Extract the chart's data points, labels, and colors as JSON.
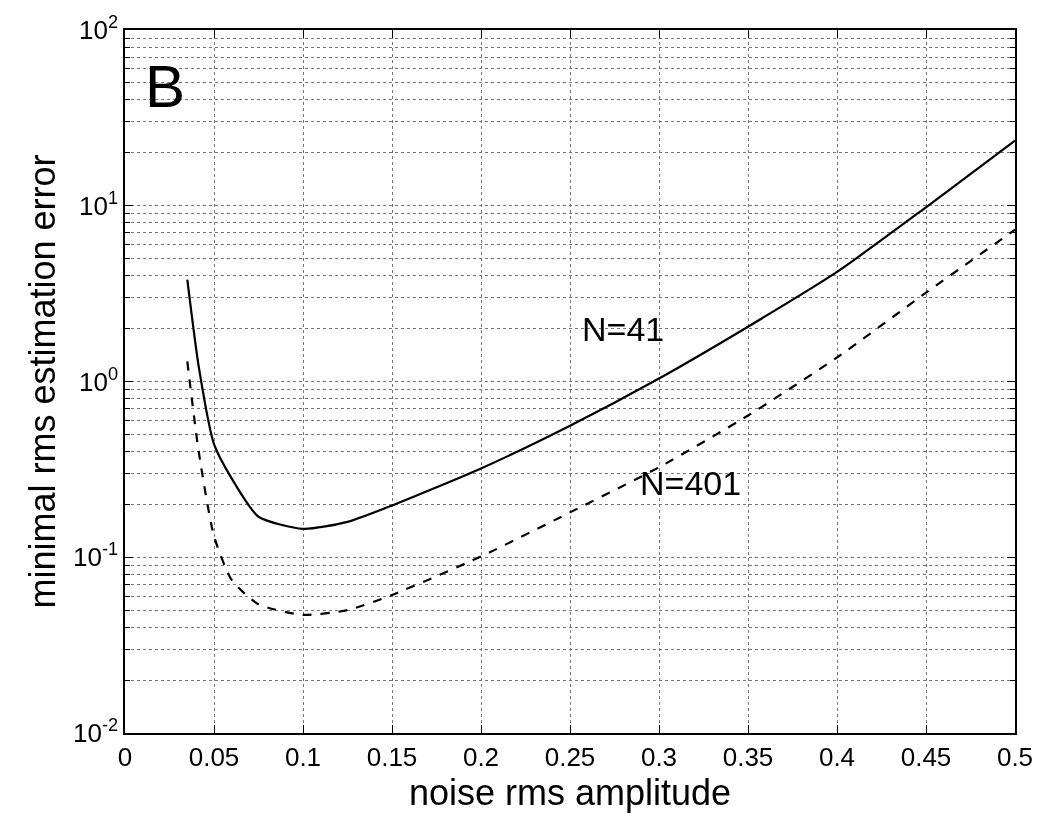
{
  "chart_data": {
    "type": "line",
    "xlabel": "noise rms amplitude",
    "ylabel": "minimal rms estimation error",
    "log": "y",
    "grid": true,
    "xlim": [
      0,
      0.5
    ],
    "xticks": [
      0,
      0.05,
      0.1,
      0.15,
      0.2,
      0.25,
      0.3,
      0.35,
      0.4,
      0.45,
      0.5
    ],
    "ylim": [
      0.01,
      100
    ],
    "yticks": [
      {
        "value": 0.01,
        "label": "10$^{-2}$"
      },
      {
        "value": 0.1,
        "label": "10$^{-1}$"
      },
      {
        "value": 1,
        "label": "10$^{0}$"
      },
      {
        "value": 10,
        "label": "10$^{1}$"
      },
      {
        "value": 100,
        "label": "10$^{2}$"
      }
    ],
    "x": [
      0.035,
      0.0414,
      0.05,
      0.06,
      0.075,
      0.1,
      0.125,
      0.15,
      0.2,
      0.25,
      0.3,
      0.35,
      0.4,
      0.45,
      0.5
    ],
    "series": [
      {
        "color": "#000000",
        "line_style": "solid",
        "values": [
          3.8,
          1.22,
          0.44,
          0.28,
          0.17,
          0.145,
          0.159,
          0.197,
          0.32,
          0.56,
          1.04,
          2.05,
          4.2,
          9.8,
          23.5
        ]
      },
      {
        "color": "#000000",
        "line_style": "dashed",
        "values": [
          1.3,
          0.4,
          0.132,
          0.074,
          0.054,
          0.047,
          0.05,
          0.061,
          0.101,
          0.18,
          0.325,
          0.64,
          1.37,
          3.2,
          7.3
        ]
      }
    ],
    "annotations": [
      "B",
      "N=41",
      "N=401"
    ]
  }
}
